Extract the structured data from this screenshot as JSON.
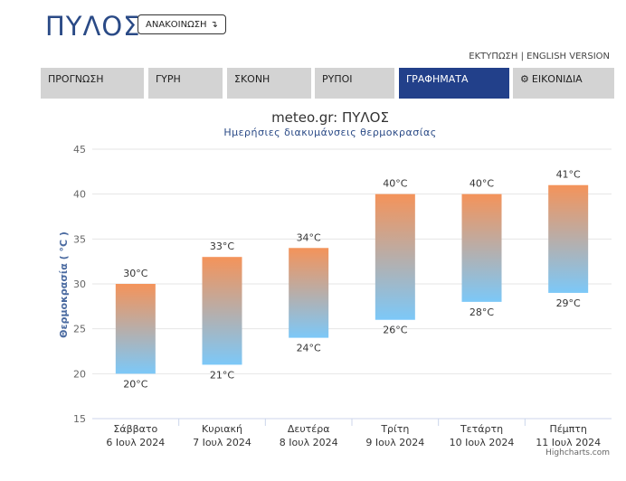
{
  "header": {
    "title": "ΠΥΛΟΣ",
    "announcement_label": "ΑΝΑΚΟΙΝΩΣΗ",
    "announcement_icon": "down-right-arrow-icon",
    "print_link": "ΕΚΤΥΠΩΣΗ",
    "separator": "|",
    "english_link": "ENGLISH VERSION"
  },
  "tabs": [
    {
      "label": "ΠΡΟΓΝΩΣΗ",
      "active": false
    },
    {
      "label": "ΓΥΡΗ",
      "active": false
    },
    {
      "label": "ΣΚΟΝΗ",
      "active": false
    },
    {
      "label": "ΡΥΠΟΙ",
      "active": false
    },
    {
      "label": "ΓΡΑΦΗΜΑΤΑ",
      "active": true
    },
    {
      "label": "ΕΙΚΟΝΙΔΙΑ",
      "active": false,
      "icon": "gear-icon"
    }
  ],
  "colors": {
    "accent": "#22408a",
    "tab_bg": "#d3d3d3",
    "bar_top": "#f4935a",
    "bar_bottom": "#7cc8f8"
  },
  "chart_data": {
    "type": "bar",
    "subtype": "columnrange",
    "title": "meteo.gr: ΠΥΛΟΣ",
    "subtitle": "Ημερήσιες διακυμάνσεις θερμοκρασίας",
    "ylabel": "Θερμοκρασία ( °C )",
    "xlabel": "",
    "ylim": [
      15,
      45
    ],
    "yticks": [
      15,
      20,
      25,
      30,
      35,
      40,
      45
    ],
    "grid": true,
    "unit": "°C",
    "categories": [
      [
        "Σάββατο",
        "6 Ιουλ 2024"
      ],
      [
        "Κυριακή",
        "7 Ιουλ 2024"
      ],
      [
        "Δευτέρα",
        "8 Ιουλ 2024"
      ],
      [
        "Τρίτη",
        "9 Ιουλ 2024"
      ],
      [
        "Τετάρτη",
        "10 Ιουλ 2024"
      ],
      [
        "Πέμπτη",
        "11 Ιουλ 2024"
      ]
    ],
    "low": [
      20,
      21,
      24,
      26,
      28,
      29
    ],
    "high": [
      30,
      33,
      34,
      40,
      40,
      41
    ]
  },
  "credits": "Highcharts.com"
}
